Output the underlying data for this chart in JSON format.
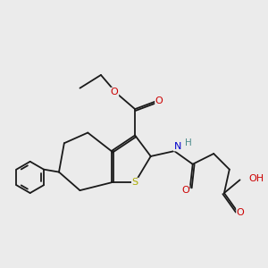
{
  "background_color": "#ebebeb",
  "bond_color": "#1a1a1a",
  "colors": {
    "O": "#cc0000",
    "N": "#0000cc",
    "S": "#aaaa00",
    "H": "#4a8a8a",
    "C": "#1a1a1a"
  },
  "lw": 1.3
}
